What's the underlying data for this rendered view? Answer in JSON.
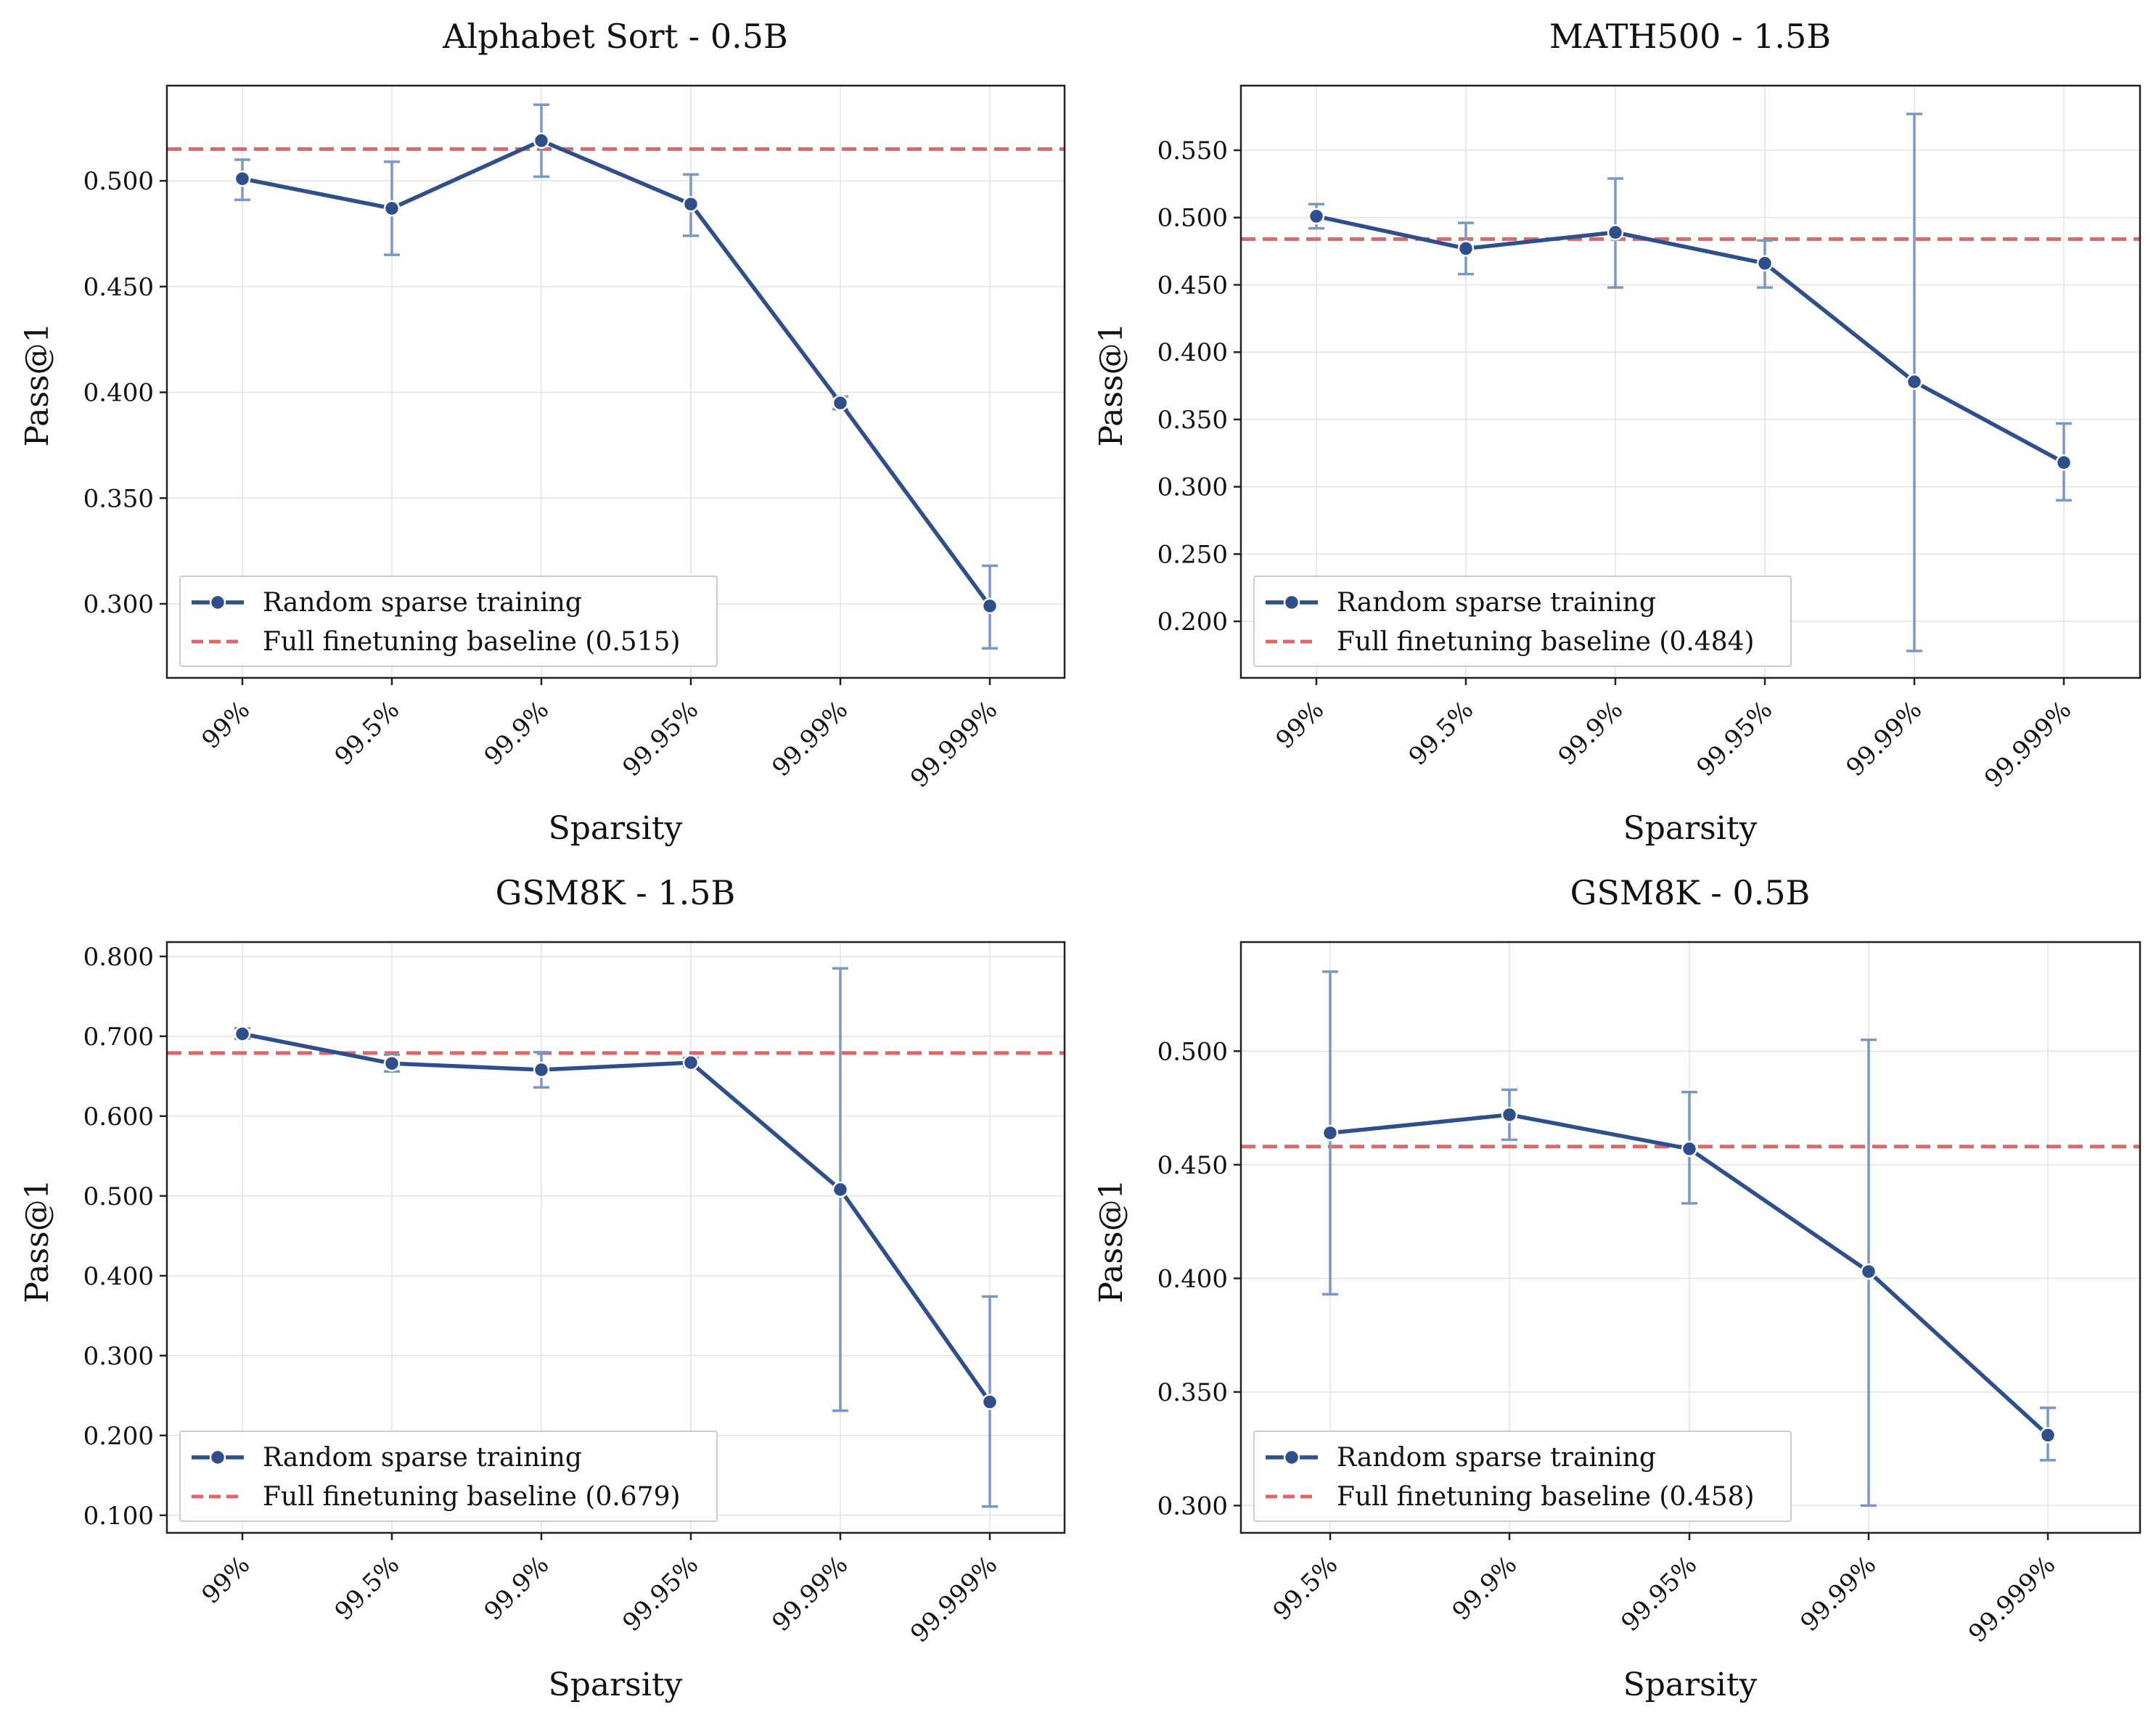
{
  "chart_data": [
    {
      "type": "line",
      "title": "Alphabet Sort - 0.5B",
      "xlabel": "Sparsity",
      "ylabel": "Pass@1",
      "categories": [
        "99%",
        "99.5%",
        "99.9%",
        "99.95%",
        "99.99%",
        "99.999%"
      ],
      "ylim": [
        0.265,
        0.545
      ],
      "yticks": [
        0.3,
        0.35,
        0.4,
        0.45,
        0.5
      ],
      "ytick_labels": [
        "0.300",
        "0.350",
        "0.400",
        "0.450",
        "0.500"
      ],
      "grid": true,
      "legend_position": "lower-left",
      "series": [
        {
          "name": "Random sparse training",
          "color": "#2e4e8c",
          "values": [
            0.501,
            0.487,
            0.519,
            0.489,
            0.395,
            0.299
          ],
          "err_low": [
            0.491,
            0.465,
            0.502,
            0.474,
            0.392,
            0.279
          ],
          "err_high": [
            0.51,
            0.509,
            0.536,
            0.503,
            0.398,
            0.318
          ]
        }
      ],
      "baseline": {
        "name": "Full finetuning baseline (0.515)",
        "value": 0.515,
        "color": "#e06666"
      }
    },
    {
      "type": "line",
      "title": "MATH500 - 1.5B",
      "xlabel": "Sparsity",
      "ylabel": "Pass@1",
      "categories": [
        "99%",
        "99.5%",
        "99.9%",
        "99.95%",
        "99.99%",
        "99.999%"
      ],
      "ylim": [
        0.158,
        0.598
      ],
      "yticks": [
        0.2,
        0.25,
        0.3,
        0.35,
        0.4,
        0.45,
        0.5,
        0.55
      ],
      "ytick_labels": [
        "0.200",
        "0.250",
        "0.300",
        "0.350",
        "0.400",
        "0.450",
        "0.500",
        "0.550"
      ],
      "grid": true,
      "legend_position": "lower-left",
      "series": [
        {
          "name": "Random sparse training",
          "color": "#2e4e8c",
          "values": [
            0.501,
            0.477,
            0.489,
            0.466,
            0.378,
            0.318
          ],
          "err_low": [
            0.492,
            0.458,
            0.448,
            0.448,
            0.178,
            0.29
          ],
          "err_high": [
            0.51,
            0.496,
            0.529,
            0.483,
            0.577,
            0.347
          ]
        }
      ],
      "baseline": {
        "name": "Full finetuning baseline (0.484)",
        "value": 0.484,
        "color": "#e06666"
      }
    },
    {
      "type": "line",
      "title": "GSM8K - 1.5B",
      "xlabel": "Sparsity",
      "ylabel": "Pass@1",
      "categories": [
        "99%",
        "99.5%",
        "99.9%",
        "99.95%",
        "99.99%",
        "99.999%"
      ],
      "ylim": [
        0.078,
        0.818
      ],
      "yticks": [
        0.1,
        0.2,
        0.3,
        0.4,
        0.5,
        0.6,
        0.7,
        0.8
      ],
      "ytick_labels": [
        "0.100",
        "0.200",
        "0.300",
        "0.400",
        "0.500",
        "0.600",
        "0.700",
        "0.800"
      ],
      "grid": true,
      "legend_position": "lower-left",
      "series": [
        {
          "name": "Random sparse training",
          "color": "#2e4e8c",
          "values": [
            0.703,
            0.666,
            0.658,
            0.667,
            0.508,
            0.242
          ],
          "err_low": [
            0.697,
            0.656,
            0.636,
            0.662,
            0.231,
            0.111
          ],
          "err_high": [
            0.71,
            0.677,
            0.68,
            0.673,
            0.785,
            0.374
          ]
        }
      ],
      "baseline": {
        "name": "Full finetuning baseline (0.679)",
        "value": 0.679,
        "color": "#e06666"
      }
    },
    {
      "type": "line",
      "title": "GSM8K - 0.5B",
      "xlabel": "Sparsity",
      "ylabel": "Pass@1",
      "categories": [
        "99.5%",
        "99.9%",
        "99.95%",
        "99.99%",
        "99.999%"
      ],
      "ylim": [
        0.288,
        0.548
      ],
      "yticks": [
        0.3,
        0.35,
        0.4,
        0.45,
        0.5
      ],
      "ytick_labels": [
        "0.300",
        "0.350",
        "0.400",
        "0.450",
        "0.500"
      ],
      "grid": true,
      "legend_position": "lower-left",
      "series": [
        {
          "name": "Random sparse training",
          "color": "#2e4e8c",
          "values": [
            0.464,
            0.472,
            0.457,
            0.403,
            0.331
          ],
          "err_low": [
            0.393,
            0.461,
            0.433,
            0.3,
            0.32
          ],
          "err_high": [
            0.535,
            0.483,
            0.482,
            0.505,
            0.343
          ]
        }
      ],
      "baseline": {
        "name": "Full finetuning baseline (0.458)",
        "value": 0.458,
        "color": "#e06666"
      }
    }
  ]
}
